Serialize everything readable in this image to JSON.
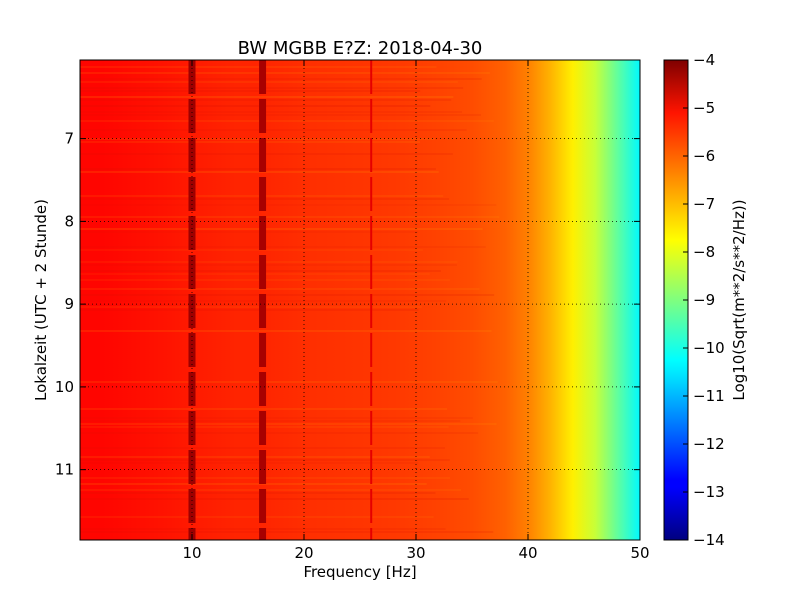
{
  "chart_data": {
    "type": "heatmap",
    "title": "BW MGBB E?Z: 2018-04-30",
    "xlabel": "Frequency [Hz]",
    "ylabel": "Lokalzeit (UTC + 2 Stunde)",
    "colorbar_label": "Log10(Sqrt(m**2/s**2/Hz))",
    "xlim": [
      0,
      50
    ],
    "ylim": [
      6.05,
      11.85
    ],
    "y_inverted": true,
    "clim": [
      -14,
      -4
    ],
    "colormap": "jet",
    "grid": true,
    "xticks": [
      10,
      20,
      30,
      40,
      50
    ],
    "xtick_labels": [
      "10",
      "20",
      "30",
      "40",
      "50"
    ],
    "yticks": [
      7,
      8,
      9,
      10,
      11
    ],
    "ytick_labels": [
      "7",
      "8",
      "9",
      "10",
      "11"
    ],
    "cticks": [
      -4,
      -5,
      -6,
      -7,
      -8,
      -9,
      -10,
      -11,
      -12,
      -13,
      -14
    ],
    "ctick_labels": [
      "−4",
      "−5",
      "−6",
      "−7",
      "−8",
      "−9",
      "−10",
      "−11",
      "−12",
      "−13",
      "−14"
    ],
    "spectrum_profile": {
      "frequency_hz": [
        0,
        2,
        4,
        6,
        8,
        10,
        12,
        14,
        16,
        18,
        20,
        24,
        28,
        32,
        35,
        38,
        40,
        42,
        44,
        46,
        48,
        50
      ],
      "log10_amplitude": [
        -5.3,
        -5.3,
        -5.35,
        -5.4,
        -5.45,
        -5.5,
        -5.55,
        -5.6,
        -5.6,
        -5.65,
        -5.7,
        -5.75,
        -5.8,
        -5.9,
        -6.0,
        -6.2,
        -6.5,
        -7.0,
        -7.6,
        -8.3,
        -9.3,
        -10.3
      ]
    },
    "line_features": [
      {
        "frequency_hz": 10,
        "log10_amplitude": -4.3
      },
      {
        "frequency_hz": 16.3,
        "log10_amplitude": -4.4
      },
      {
        "frequency_hz": 26,
        "log10_amplitude": -5.0
      }
    ]
  }
}
